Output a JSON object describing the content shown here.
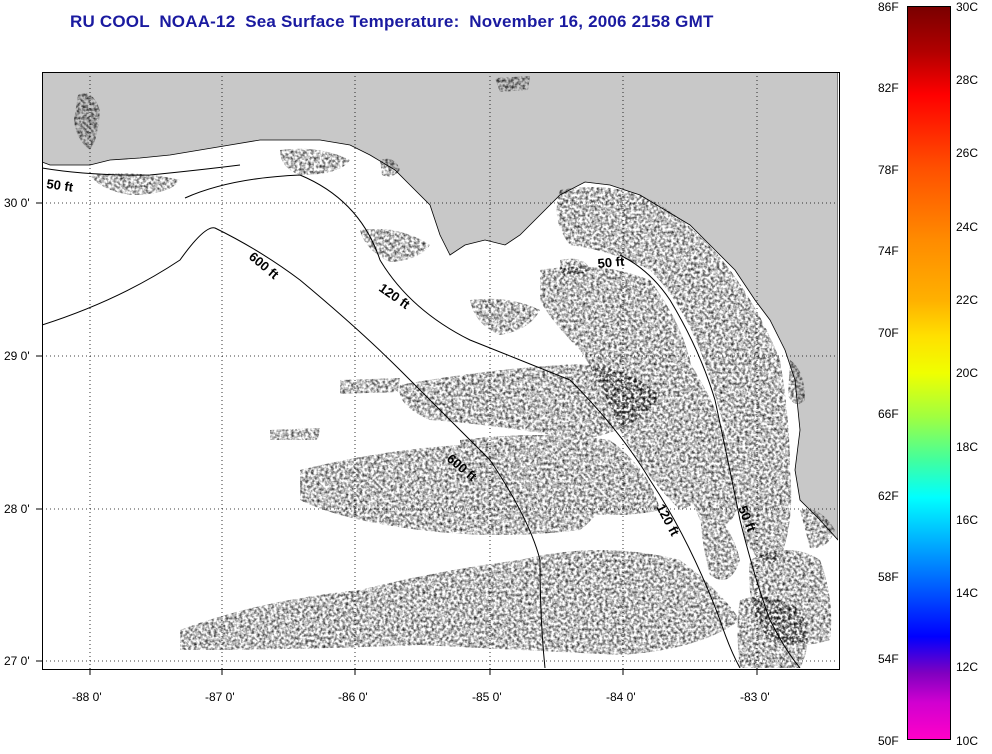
{
  "title": "RU COOL  NOAA-12  Sea Surface Temperature:  November 16, 2006 2158 GMT",
  "latitude_labels": [
    "30 0'",
    "29 0'",
    "28 0'",
    "27 0'"
  ],
  "longitude_labels": [
    "-88 0'",
    "-87 0'",
    "-86 0'",
    "-85 0'",
    "-84 0'",
    "-83 0'"
  ],
  "isobath_labels": [
    "50 ft",
    "600 ft",
    "120 ft",
    "50 ft",
    "600 ft",
    "120 ft",
    "50 ft"
  ],
  "colorbar": {
    "fahrenheit": [
      "86F",
      "82F",
      "78F",
      "74F",
      "70F",
      "66F",
      "62F",
      "58F",
      "54F",
      "50F"
    ],
    "celsius": [
      "30C",
      "28C",
      "26C",
      "24C",
      "22C",
      "20C",
      "18C",
      "16C",
      "14C",
      "12C",
      "10C"
    ]
  },
  "colors": {
    "land": "#c8c8c8",
    "title": "#1a1aa0",
    "warm": "#ff9a1a",
    "mid": "#f0f000",
    "cool": "#40e0b0",
    "cold": "#3070ff",
    "coldest": "#e000d0"
  }
}
